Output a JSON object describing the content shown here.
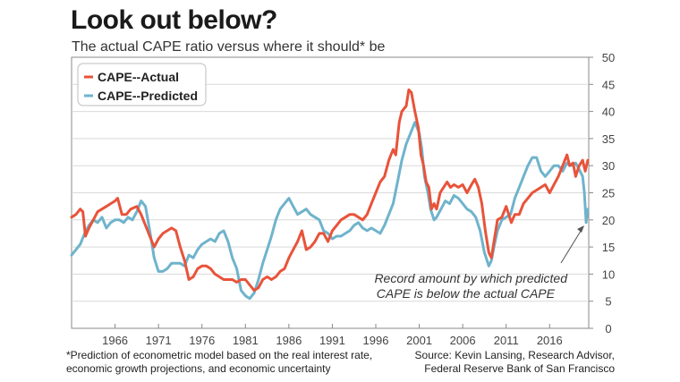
{
  "header": {
    "title": "Look out below?",
    "subtitle": "The actual CAPE ratio versus where it should* be"
  },
  "footer": {
    "note_line1": "*Prediction of econometric model based on the real interest rate,",
    "note_line2": "economic growth projections, and economic uncertainty",
    "source_line1": "Source: Kevin Lansing, Research Advisor,",
    "source_line2": "Federal Reserve Bank of San Francisco"
  },
  "annotation": {
    "line1": "Record amount by which predicted",
    "line2": "CAPE is below the actual CAPE"
  },
  "colors": {
    "actual": "#e8533a",
    "predicted": "#6fb3cc",
    "axis": "#888888",
    "grid": "#d9d9d9"
  },
  "chart_data": {
    "type": "line",
    "title": "Look out below?",
    "subtitle": "The actual CAPE ratio versus where it should* be",
    "xlabel": "",
    "ylabel": "",
    "xlim": [
      1961,
      2020.5
    ],
    "ylim": [
      0,
      50
    ],
    "x_ticks": [
      1966,
      1971,
      1976,
      1981,
      1986,
      1991,
      1996,
      2001,
      2006,
      2011,
      2016
    ],
    "y_ticks": [
      0,
      5,
      10,
      15,
      20,
      25,
      30,
      35,
      40,
      45,
      50
    ],
    "grid": "horizontal",
    "legend_position": "top-left",
    "series": [
      {
        "name": "CAPE--Actual",
        "color": "#e8533a",
        "points": [
          [
            1961.0,
            20.5
          ],
          [
            1961.5,
            21
          ],
          [
            1962.0,
            22
          ],
          [
            1962.3,
            21.5
          ],
          [
            1962.6,
            17
          ],
          [
            1963.0,
            18.5
          ],
          [
            1963.5,
            20
          ],
          [
            1964.0,
            21.5
          ],
          [
            1964.5,
            22
          ],
          [
            1965.0,
            22.5
          ],
          [
            1965.5,
            23
          ],
          [
            1966.0,
            23.5
          ],
          [
            1966.3,
            24
          ],
          [
            1966.8,
            21
          ],
          [
            1967.3,
            21
          ],
          [
            1967.8,
            22
          ],
          [
            1968.5,
            22.5
          ],
          [
            1969.0,
            21
          ],
          [
            1969.5,
            19
          ],
          [
            1970.0,
            17
          ],
          [
            1970.5,
            15
          ],
          [
            1971.0,
            16.5
          ],
          [
            1971.5,
            17.5
          ],
          [
            1972.0,
            18
          ],
          [
            1972.5,
            18.5
          ],
          [
            1973.0,
            18
          ],
          [
            1973.5,
            15
          ],
          [
            1974.0,
            12.5
          ],
          [
            1974.5,
            9
          ],
          [
            1975.0,
            9.5
          ],
          [
            1975.5,
            11
          ],
          [
            1976.0,
            11.5
          ],
          [
            1976.5,
            11.5
          ],
          [
            1977.0,
            11
          ],
          [
            1977.5,
            10
          ],
          [
            1978.0,
            9.5
          ],
          [
            1978.5,
            9
          ],
          [
            1979.0,
            9
          ],
          [
            1979.5,
            9
          ],
          [
            1980.0,
            8.5
          ],
          [
            1980.5,
            9
          ],
          [
            1981.0,
            9
          ],
          [
            1981.5,
            8
          ],
          [
            1982.0,
            7
          ],
          [
            1982.5,
            7.5
          ],
          [
            1983.0,
            9
          ],
          [
            1983.5,
            9.5
          ],
          [
            1984.0,
            9
          ],
          [
            1984.5,
            9.5
          ],
          [
            1985.0,
            10.5
          ],
          [
            1985.5,
            11
          ],
          [
            1986.0,
            13
          ],
          [
            1986.5,
            14.5
          ],
          [
            1987.0,
            16
          ],
          [
            1987.5,
            18
          ],
          [
            1988.0,
            14.5
          ],
          [
            1988.5,
            15
          ],
          [
            1989.0,
            16
          ],
          [
            1989.5,
            17.5
          ],
          [
            1990.0,
            17.5
          ],
          [
            1990.5,
            16
          ],
          [
            1991.0,
            18
          ],
          [
            1991.5,
            19
          ],
          [
            1992.0,
            20
          ],
          [
            1992.5,
            20.5
          ],
          [
            1993.0,
            21
          ],
          [
            1993.5,
            21
          ],
          [
            1994.0,
            20.5
          ],
          [
            1994.5,
            20
          ],
          [
            1995.0,
            21
          ],
          [
            1995.5,
            23
          ],
          [
            1996.0,
            25
          ],
          [
            1996.5,
            27
          ],
          [
            1997.0,
            28
          ],
          [
            1997.5,
            31
          ],
          [
            1998.0,
            33
          ],
          [
            1998.3,
            32
          ],
          [
            1998.7,
            38
          ],
          [
            1999.0,
            40
          ],
          [
            1999.5,
            41
          ],
          [
            1999.8,
            44
          ],
          [
            2000.1,
            43.5
          ],
          [
            2000.5,
            40
          ],
          [
            2000.9,
            37
          ],
          [
            2001.2,
            32
          ],
          [
            2001.5,
            30
          ],
          [
            2001.8,
            27
          ],
          [
            2002.1,
            26
          ],
          [
            2002.4,
            22
          ],
          [
            2002.7,
            23
          ],
          [
            2003.0,
            22
          ],
          [
            2003.4,
            25
          ],
          [
            2003.8,
            26
          ],
          [
            2004.2,
            27
          ],
          [
            2004.6,
            26
          ],
          [
            2005.0,
            26.5
          ],
          [
            2005.5,
            26
          ],
          [
            2006.0,
            26.5
          ],
          [
            2006.5,
            25
          ],
          [
            2007.0,
            26.5
          ],
          [
            2007.4,
            27.5
          ],
          [
            2007.8,
            26
          ],
          [
            2008.2,
            23
          ],
          [
            2008.6,
            18
          ],
          [
            2009.0,
            14
          ],
          [
            2009.3,
            13
          ],
          [
            2009.6,
            16
          ],
          [
            2010.0,
            20
          ],
          [
            2010.5,
            20.5
          ],
          [
            2011.0,
            22.5
          ],
          [
            2011.3,
            21
          ],
          [
            2011.6,
            19.5
          ],
          [
            2012.0,
            21
          ],
          [
            2012.5,
            21
          ],
          [
            2013.0,
            23
          ],
          [
            2013.5,
            24
          ],
          [
            2014.0,
            25
          ],
          [
            2014.5,
            25.5
          ],
          [
            2015.0,
            26
          ],
          [
            2015.5,
            26.5
          ],
          [
            2016.0,
            25
          ],
          [
            2016.5,
            26.5
          ],
          [
            2017.0,
            28
          ],
          [
            2017.5,
            30
          ],
          [
            2018.0,
            32
          ],
          [
            2018.3,
            30
          ],
          [
            2018.7,
            30.5
          ],
          [
            2019.0,
            28
          ],
          [
            2019.4,
            30
          ],
          [
            2019.8,
            31
          ],
          [
            2020.1,
            29
          ],
          [
            2020.4,
            31
          ]
        ]
      },
      {
        "name": "CAPE--Predicted",
        "color": "#6fb3cc",
        "points": [
          [
            1961.0,
            13.5
          ],
          [
            1961.5,
            14.5
          ],
          [
            1962.0,
            15.5
          ],
          [
            1962.5,
            17.5
          ],
          [
            1963.0,
            19
          ],
          [
            1963.5,
            20
          ],
          [
            1964.0,
            19.5
          ],
          [
            1964.5,
            20.5
          ],
          [
            1965.0,
            18.5
          ],
          [
            1965.5,
            19.5
          ],
          [
            1966.0,
            20
          ],
          [
            1966.5,
            20
          ],
          [
            1967.0,
            19.5
          ],
          [
            1967.5,
            20.5
          ],
          [
            1968.0,
            20
          ],
          [
            1968.5,
            21.5
          ],
          [
            1969.0,
            23.5
          ],
          [
            1969.5,
            22.5
          ],
          [
            1970.0,
            18
          ],
          [
            1970.5,
            13
          ],
          [
            1971.0,
            10.5
          ],
          [
            1971.5,
            10.5
          ],
          [
            1972.0,
            11
          ],
          [
            1972.5,
            12
          ],
          [
            1973.0,
            12
          ],
          [
            1973.5,
            12
          ],
          [
            1974.0,
            11.5
          ],
          [
            1974.5,
            13.5
          ],
          [
            1975.0,
            13
          ],
          [
            1975.5,
            14.5
          ],
          [
            1976.0,
            15.5
          ],
          [
            1976.5,
            16
          ],
          [
            1977.0,
            16.5
          ],
          [
            1977.5,
            16
          ],
          [
            1978.0,
            17.5
          ],
          [
            1978.5,
            18
          ],
          [
            1979.0,
            16
          ],
          [
            1979.5,
            13
          ],
          [
            1980.0,
            11
          ],
          [
            1980.5,
            7
          ],
          [
            1981.0,
            6
          ],
          [
            1981.5,
            5.5
          ],
          [
            1982.0,
            6.5
          ],
          [
            1982.5,
            9
          ],
          [
            1983.0,
            12
          ],
          [
            1983.5,
            14.5
          ],
          [
            1984.0,
            17
          ],
          [
            1984.5,
            20
          ],
          [
            1985.0,
            22
          ],
          [
            1985.5,
            23
          ],
          [
            1986.0,
            24
          ],
          [
            1986.5,
            22.5
          ],
          [
            1987.0,
            21
          ],
          [
            1987.5,
            21.5
          ],
          [
            1988.0,
            22
          ],
          [
            1988.5,
            21
          ],
          [
            1989.0,
            20.5
          ],
          [
            1989.5,
            20
          ],
          [
            1990.0,
            18
          ],
          [
            1990.5,
            17.5
          ],
          [
            1991.0,
            16.5
          ],
          [
            1991.5,
            17
          ],
          [
            1992.0,
            17
          ],
          [
            1992.5,
            17.5
          ],
          [
            1993.0,
            18
          ],
          [
            1993.5,
            19
          ],
          [
            1994.0,
            19.5
          ],
          [
            1994.5,
            18.5
          ],
          [
            1995.0,
            18
          ],
          [
            1995.5,
            18.5
          ],
          [
            1996.0,
            18
          ],
          [
            1996.5,
            17.5
          ],
          [
            1997.0,
            19
          ],
          [
            1997.5,
            21
          ],
          [
            1998.0,
            23
          ],
          [
            1998.5,
            27
          ],
          [
            1999.0,
            31
          ],
          [
            1999.5,
            34
          ],
          [
            2000.0,
            36
          ],
          [
            2000.5,
            38
          ],
          [
            2001.0,
            36
          ],
          [
            2001.3,
            33
          ],
          [
            2001.6,
            28
          ],
          [
            2002.0,
            25
          ],
          [
            2002.3,
            22
          ],
          [
            2002.7,
            20
          ],
          [
            2003.0,
            20.5
          ],
          [
            2003.5,
            22
          ],
          [
            2004.0,
            23.5
          ],
          [
            2004.5,
            23
          ],
          [
            2005.0,
            24.5
          ],
          [
            2005.5,
            24
          ],
          [
            2006.0,
            23
          ],
          [
            2006.5,
            22
          ],
          [
            2007.0,
            21.5
          ],
          [
            2007.5,
            20.5
          ],
          [
            2008.0,
            18
          ],
          [
            2008.5,
            14
          ],
          [
            2009.0,
            11.5
          ],
          [
            2009.3,
            12.5
          ],
          [
            2009.6,
            15
          ],
          [
            2010.0,
            18
          ],
          [
            2010.5,
            20
          ],
          [
            2011.0,
            20.5
          ],
          [
            2011.5,
            21
          ],
          [
            2012.0,
            24
          ],
          [
            2012.5,
            26
          ],
          [
            2013.0,
            28
          ],
          [
            2013.5,
            30
          ],
          [
            2014.0,
            31.5
          ],
          [
            2014.5,
            31.5
          ],
          [
            2015.0,
            29
          ],
          [
            2015.5,
            28
          ],
          [
            2016.0,
            29
          ],
          [
            2016.5,
            30
          ],
          [
            2017.0,
            30
          ],
          [
            2017.5,
            29
          ],
          [
            2018.0,
            30.5
          ],
          [
            2018.5,
            30
          ],
          [
            2019.0,
            30.5
          ],
          [
            2019.5,
            29
          ],
          [
            2019.8,
            28
          ],
          [
            2020.0,
            25
          ],
          [
            2020.2,
            19.5
          ],
          [
            2020.4,
            22
          ]
        ]
      }
    ],
    "annotation": "Record amount by which predicted CAPE is below the actual CAPE"
  }
}
